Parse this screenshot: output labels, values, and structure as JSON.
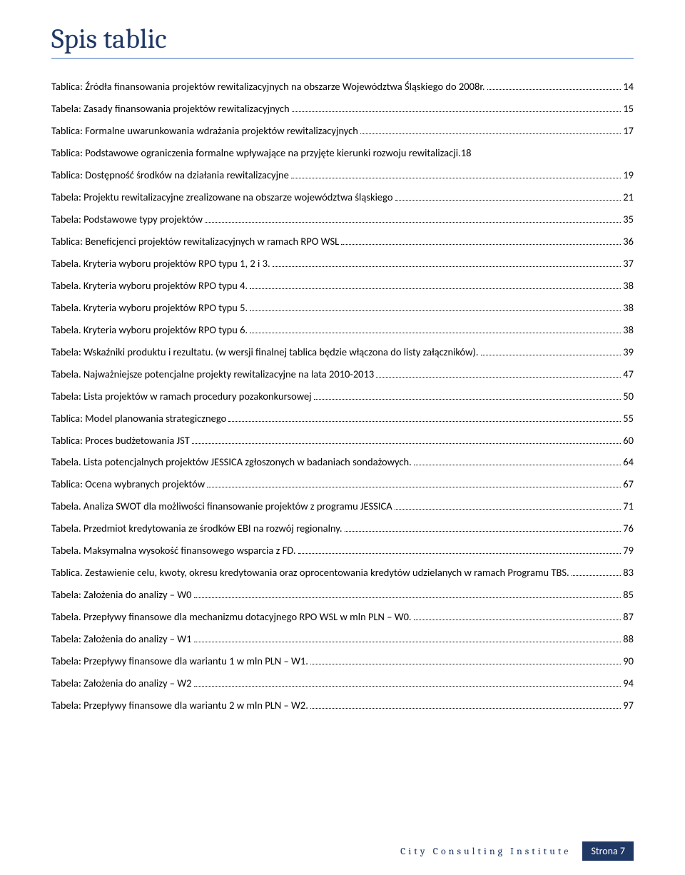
{
  "page": {
    "title": "Spis tablic",
    "footer_left": "City Consulting Institute",
    "footer_label": "Strona",
    "footer_page": "7"
  },
  "toc": {
    "entries": [
      {
        "text": "Tablica: Źródła finansowania projektów rewitalizacyjnych na obszarze Województwa Śląskiego do 2008r.",
        "page": "14"
      },
      {
        "text": "Tabela: Zasady finansowania projektów rewitalizacyjnych",
        "page": "15"
      },
      {
        "text": "Tablica: Formalne uwarunkowania wdrażania projektów rewitalizacyjnych",
        "page": "17"
      },
      {
        "text": "Tablica: Podstawowe ograniczenia formalne wpływające na przyjęte kierunki rozwoju rewitalizacji.",
        "page": "18",
        "no_dots": true
      },
      {
        "text": "Tablica: Dostępność środków na działania rewitalizacyjne",
        "page": "19"
      },
      {
        "text": "Tabela: Projektu rewitalizacyjne zrealizowane na obszarze województwa śląskiego",
        "page": "21"
      },
      {
        "text": "Tabela: Podstawowe typy projektów",
        "page": "35"
      },
      {
        "text": "Tablica: Beneficjenci projektów rewitalizacyjnych w ramach RPO WSL",
        "page": "36"
      },
      {
        "text": "Tabela. Kryteria wyboru projektów RPO typu 1, 2 i 3.",
        "page": "37"
      },
      {
        "text": "Tabela. Kryteria wyboru projektów RPO typu 4.",
        "page": "38"
      },
      {
        "text": "Tabela. Kryteria wyboru projektów RPO typu 5.",
        "page": "38"
      },
      {
        "text": "Tabela. Kryteria wyboru projektów RPO typu 6.",
        "page": "38"
      },
      {
        "text": "Tabela: Wskaźniki produktu i rezultatu. (w wersji finalnej tablica będzie włączona do listy załączników).",
        "page": "39"
      },
      {
        "text": "Tabela. Najważniejsze potencjalne projekty rewitalizacyjne na lata 2010-2013",
        "page": "47"
      },
      {
        "text": "Tabela: Lista projektów w ramach procedury pozakonkursowej",
        "page": "50"
      },
      {
        "text": "Tablica: Model planowania strategicznego",
        "page": "55"
      },
      {
        "text": "Tablica: Proces budżetowania JST",
        "page": "60"
      },
      {
        "text": "Tabela. Lista potencjalnych projektów JESSICA zgłoszonych w badaniach sondażowych.",
        "page": "64"
      },
      {
        "text": "Tablica: Ocena wybranych projektów",
        "page": "67"
      },
      {
        "text": "Tabela. Analiza SWOT dla możliwości finansowanie projektów z programu JESSICA",
        "page": "71"
      },
      {
        "text": "Tabela. Przedmiot kredytowania ze środków EBI na rozwój regionalny.",
        "page": "76"
      },
      {
        "text": "Tabela. Maksymalna wysokość finansowego wsparcia z FD.",
        "page": "79"
      },
      {
        "text": "Tablica. Zestawienie celu, kwoty, okresu kredytowania oraz oprocentowania kredytów udzielanych w ramach Programu TBS.",
        "page": "83"
      },
      {
        "text": "Tabela: Założenia do analizy – W0",
        "page": "85"
      },
      {
        "text": "Tabela. Przepływy finansowe dla mechanizmu dotacyjnego RPO WSL  w mln PLN – W0.",
        "page": "87"
      },
      {
        "text": "Tabela: Założenia do analizy – W1",
        "page": "88"
      },
      {
        "text": "Tabela: Przepływy finansowe dla wariantu 1 w mln PLN – W1.",
        "page": "90"
      },
      {
        "text": "Tabela: Założenia do analizy – W2",
        "page": "94"
      },
      {
        "text": "Tabela: Przepływy finansowe dla wariantu 2 w mln PLN – W2.",
        "page": "97"
      }
    ]
  }
}
